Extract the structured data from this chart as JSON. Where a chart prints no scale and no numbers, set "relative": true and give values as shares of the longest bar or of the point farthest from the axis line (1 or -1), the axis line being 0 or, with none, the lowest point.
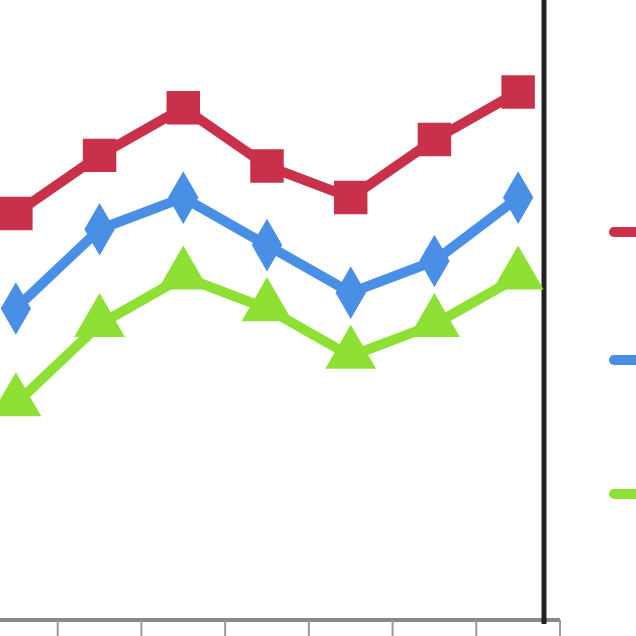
{
  "chart_data": {
    "type": "line",
    "relative": true,
    "categories": [
      null,
      null,
      null,
      null,
      null,
      null,
      null
    ],
    "series": [
      {
        "color": "#c9304a",
        "marker": "square",
        "values": [
          0.77,
          0.88,
          0.97,
          0.86,
          0.8,
          0.91,
          1
        ]
      },
      {
        "color": "#4a8fe6",
        "marker": "diamond",
        "values": [
          0.59,
          0.74,
          0.8,
          0.71,
          0.62,
          0.68,
          0.8
        ]
      },
      {
        "color": "#8ee034",
        "marker": "triangle",
        "values": [
          0.41,
          0.56,
          0.65,
          0.59,
          0.5,
          0.56,
          0.65
        ]
      }
    ]
  }
}
